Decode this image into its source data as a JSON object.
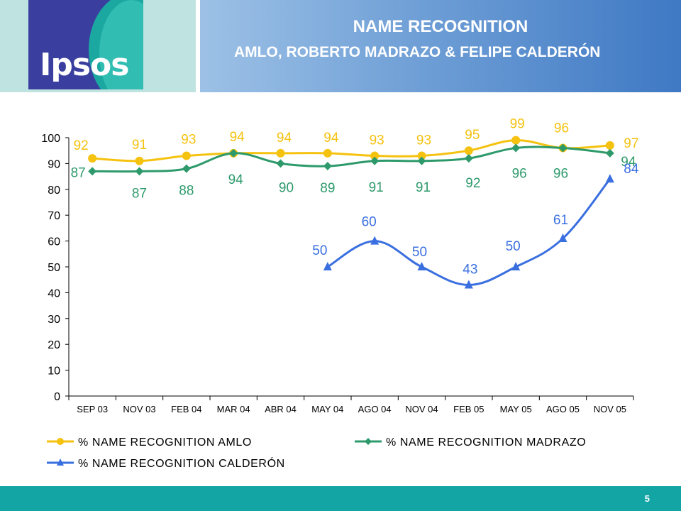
{
  "header": {
    "logo_text": "Ipsos",
    "title": "NAME RECOGNITION",
    "subtitle": "AMLO, ROBERTO MADRAZO & FELIPE CALDERÓN"
  },
  "footer": {
    "page_number": "5"
  },
  "colors": {
    "amlo": "#f5c20f",
    "madrazo": "#2e9a6b",
    "calderon": "#3a6fe0",
    "footer": "#12a5a3"
  },
  "chart_data": {
    "type": "line",
    "title": "",
    "xlabel": "",
    "ylabel": "",
    "ylim": [
      0,
      100
    ],
    "yticks": [
      0,
      10,
      20,
      30,
      40,
      50,
      60,
      70,
      80,
      90,
      100
    ],
    "grid": false,
    "legend_position": "bottom",
    "categories": [
      "SEP 03",
      "NOV 03",
      "FEB 04",
      "MAR 04",
      "ABR 04",
      "MAY 04",
      "AGO 04",
      "NOV 04",
      "FEB 05",
      "MAY 05",
      "AGO 05",
      "NOV 05"
    ],
    "series": [
      {
        "name": "% NAME RECOGNITION AMLO",
        "marker": "circle",
        "values": [
          92,
          91,
          93,
          94,
          94,
          94,
          93,
          93,
          95,
          99,
          96,
          97
        ]
      },
      {
        "name": "% NAME RECOGNITION MADRAZO",
        "marker": "diamond",
        "values": [
          87,
          87,
          88,
          94,
          90,
          89,
          91,
          91,
          92,
          96,
          96,
          94
        ]
      },
      {
        "name": "% NAME RECOGNITION CALDERÓN",
        "marker": "triangle",
        "values": [
          null,
          null,
          null,
          null,
          null,
          50,
          60,
          50,
          43,
          50,
          61,
          84
        ]
      }
    ]
  }
}
